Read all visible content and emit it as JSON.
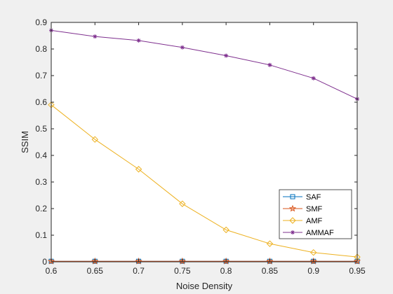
{
  "chart_data": {
    "type": "line",
    "title": "",
    "xlabel": "Noise Density",
    "ylabel": "SSIM",
    "xlim": [
      0.6,
      0.95
    ],
    "ylim": [
      0,
      0.9
    ],
    "x": [
      0.6,
      0.65,
      0.7,
      0.75,
      0.8,
      0.85,
      0.9,
      0.95
    ],
    "x_ticks": [
      "0.6",
      "0.65",
      "0.7",
      "0.75",
      "0.8",
      "0.85",
      "0.9",
      "0.95"
    ],
    "y_ticks": [
      "0",
      "0.1",
      "0.2",
      "0.3",
      "0.4",
      "0.5",
      "0.6",
      "0.7",
      "0.8",
      "0.9"
    ],
    "y_tick_values": [
      0,
      0.1,
      0.2,
      0.3,
      0.4,
      0.5,
      0.6,
      0.7,
      0.8,
      0.9
    ],
    "grid": false,
    "legend_position": "bottom-right",
    "series": [
      {
        "name": "SAF",
        "color": "#0072BD",
        "marker": "square",
        "values": [
          0.002,
          0.002,
          0.002,
          0.002,
          0.002,
          0.002,
          0.002,
          0.002
        ]
      },
      {
        "name": "SMF",
        "color": "#D95319",
        "marker": "pentagram",
        "values": [
          0.002,
          0.002,
          0.002,
          0.002,
          0.002,
          0.002,
          0.002,
          0.002
        ]
      },
      {
        "name": "AMF",
        "color": "#EDB120",
        "marker": "diamond",
        "values": [
          0.59,
          0.46,
          0.348,
          0.218,
          0.12,
          0.068,
          0.035,
          0.018
        ]
      },
      {
        "name": "AMMAF",
        "color": "#7E2F8E",
        "marker": "asterisk",
        "values": [
          0.87,
          0.847,
          0.832,
          0.806,
          0.775,
          0.74,
          0.69,
          0.612
        ]
      }
    ]
  }
}
